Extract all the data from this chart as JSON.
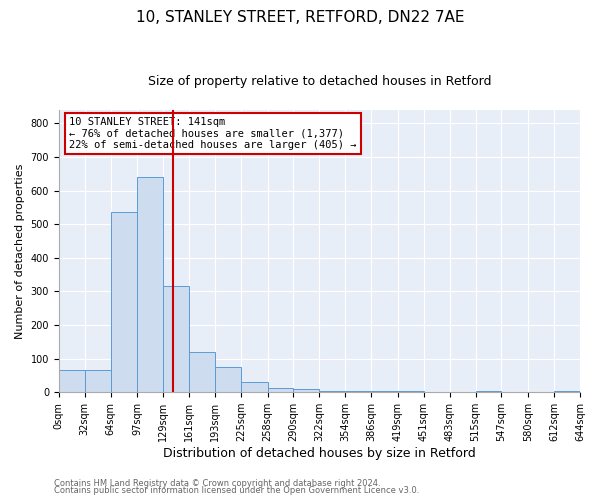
{
  "title": "10, STANLEY STREET, RETFORD, DN22 7AE",
  "subtitle": "Size of property relative to detached houses in Retford",
  "xlabel": "Distribution of detached houses by size in Retford",
  "ylabel": "Number of detached properties",
  "bin_edges": [
    0,
    32,
    64,
    97,
    129,
    161,
    193,
    225,
    258,
    290,
    322,
    354,
    386,
    419,
    451,
    483,
    515,
    547,
    580,
    612,
    644
  ],
  "bin_heights": [
    65,
    65,
    535,
    640,
    315,
    120,
    75,
    30,
    12,
    10,
    5,
    5,
    5,
    5,
    0,
    0,
    5,
    0,
    0,
    5
  ],
  "bar_color": "#cddcee",
  "bar_edge_color": "#5b9bd5",
  "vline_x": 141,
  "vline_color": "#cc0000",
  "ylim": [
    0,
    840
  ],
  "yticks": [
    0,
    100,
    200,
    300,
    400,
    500,
    600,
    700,
    800
  ],
  "tick_labels": [
    "0sqm",
    "32sqm",
    "64sqm",
    "97sqm",
    "129sqm",
    "161sqm",
    "193sqm",
    "225sqm",
    "258sqm",
    "290sqm",
    "322sqm",
    "354sqm",
    "386sqm",
    "419sqm",
    "451sqm",
    "483sqm",
    "515sqm",
    "547sqm",
    "580sqm",
    "612sqm",
    "644sqm"
  ],
  "annotation_title": "10 STANLEY STREET: 141sqm",
  "annotation_line1": "← 76% of detached houses are smaller (1,377)",
  "annotation_line2": "22% of semi-detached houses are larger (405) →",
  "annotation_box_color": "#ffffff",
  "annotation_box_edge": "#cc0000",
  "footer1": "Contains HM Land Registry data © Crown copyright and database right 2024.",
  "footer2": "Contains public sector information licensed under the Open Government Licence v3.0.",
  "background_color": "#ffffff",
  "plot_background": "#e8eef8",
  "grid_color": "#ffffff",
  "title_fontsize": 11,
  "subtitle_fontsize": 9,
  "ylabel_fontsize": 8,
  "xlabel_fontsize": 9,
  "annot_fontsize": 7.5,
  "footer_fontsize": 6,
  "tick_fontsize": 7
}
